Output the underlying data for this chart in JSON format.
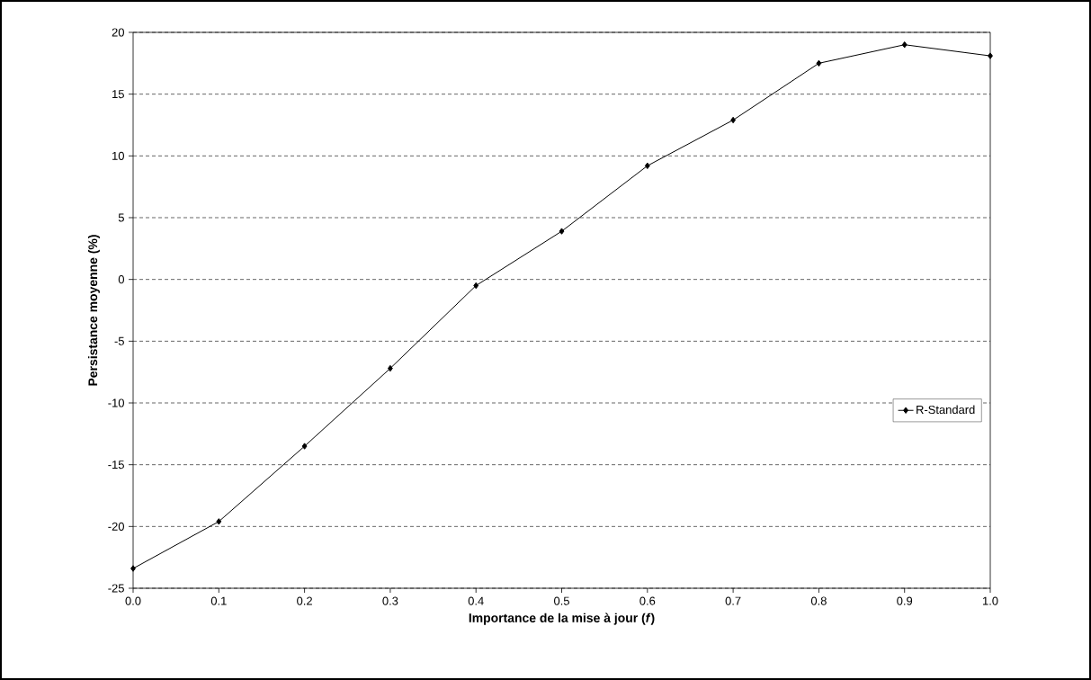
{
  "chart_data": {
    "type": "line",
    "xlabel": "Importance de la mise à jour (*f*)",
    "ylabel": "Persistance moyenne (%)",
    "x": [
      0.0,
      0.1,
      0.2,
      0.3,
      0.4,
      0.5,
      0.6,
      0.7,
      0.8,
      0.9,
      1.0
    ],
    "series": [
      {
        "name": "R-Standard",
        "color": "#000000",
        "values": [
          -23.4,
          -19.6,
          -13.5,
          -7.2,
          -0.5,
          3.9,
          9.2,
          12.9,
          17.5,
          19.0,
          18.1
        ]
      }
    ],
    "xlim": [
      0,
      1
    ],
    "xticks": [
      {
        "value": 0,
        "label": "0.0"
      },
      {
        "value": 0.1,
        "label": "0.1"
      },
      {
        "value": 0.2,
        "label": "0.2"
      },
      {
        "value": 0.3,
        "label": "0.3"
      },
      {
        "value": 0.4,
        "label": "0.4"
      },
      {
        "value": 0.5,
        "label": "0.5"
      },
      {
        "value": 0.6,
        "label": "0.6"
      },
      {
        "value": 0.7,
        "label": "0.7"
      },
      {
        "value": 0.8,
        "label": "0.8"
      },
      {
        "value": 0.9,
        "label": "0.9"
      },
      {
        "value": 1,
        "label": "1.0"
      }
    ],
    "ylim": [
      -25,
      20
    ],
    "yticks": [
      -25,
      -20,
      -15,
      -10,
      -5,
      0,
      5,
      10,
      15,
      20
    ],
    "grid": "y",
    "legend": "right",
    "marker": "diamond",
    "line_style": "solid"
  }
}
